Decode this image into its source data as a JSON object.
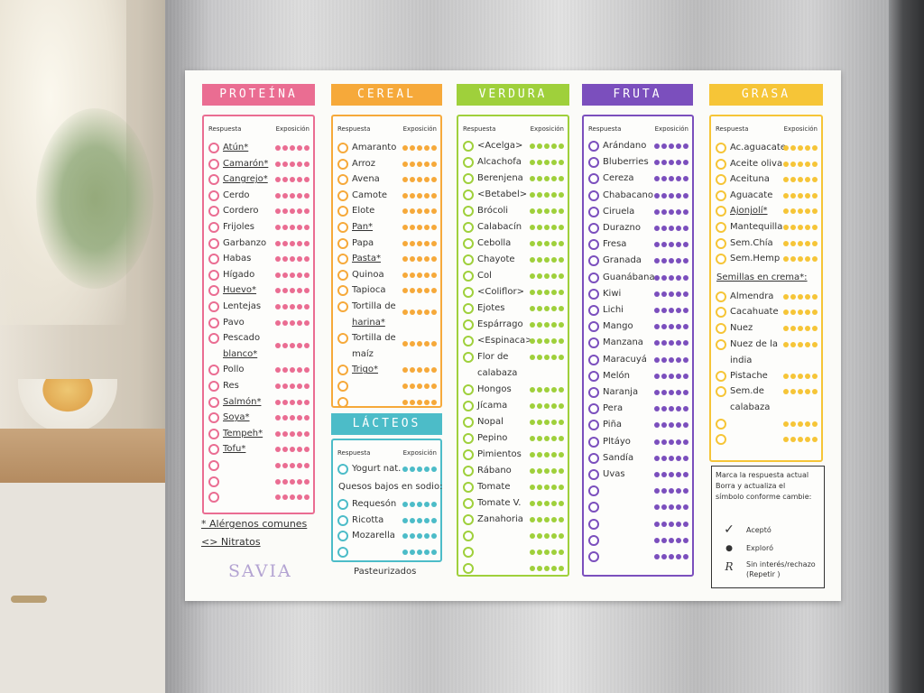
{
  "colors": {
    "proteina": "#ea6d92",
    "cereal": "#f6a93a",
    "verdura": "#9fd03b",
    "fruta": "#7b4fbd",
    "grasa": "#f6c537",
    "lacteos": "#4cbcc8"
  },
  "sheet": {
    "col_respuesta": "Respuesta",
    "col_exposicion": "Exposición"
  },
  "proteina": {
    "title": "PROTEÍNA",
    "items": [
      "Atún*",
      "Camarón*",
      "Cangrejo*",
      "Cerdo",
      "Cordero",
      "Frijoles",
      "Garbanzo",
      "Habas",
      "Hígado",
      "Huevo*",
      "Lentejas",
      "Pavo",
      "Pescado",
      "Pollo",
      "Res",
      "Salmón*",
      "Soya*",
      "Tempeh*",
      "Tofu*",
      "",
      "",
      ""
    ],
    "pescado_line2": "blanco*"
  },
  "cereal": {
    "title": "CEREAL",
    "items": [
      "Amaranto",
      "Arroz",
      "Avena",
      "Camote",
      "Elote",
      "Pan*",
      "Papa",
      "Pasta*",
      "Quinoa",
      "Tapioca",
      "Tortilla de",
      "Tortilla de",
      "Trigo*",
      "",
      ""
    ],
    "tortilla1_line2": "harina*",
    "tortilla2_line2": "maíz"
  },
  "lacteos": {
    "title": "LÁCTEOS",
    "items": [
      "Yogurt nat.",
      "Requesón",
      "Ricotta",
      "Mozarella",
      ""
    ],
    "quesos_label": "Quesos bajos en sodio:",
    "footer": "Pasteurizados"
  },
  "verdura": {
    "title": "VERDURA",
    "items": [
      "<Acelga>",
      "Alcachofa",
      "Berenjena",
      "<Betabel>",
      "Brócoli",
      "Calabacín",
      "Cebolla",
      "Chayote",
      "Col",
      "<Coliflor>",
      "Ejotes",
      "Espárrago",
      "<Espinaca>",
      "Flor de",
      "Hongos",
      "Jícama",
      "Nopal",
      "Pepino",
      "Pimientos",
      "Rábano",
      "Tomate",
      "Tomate V.",
      "Zanahoria",
      "",
      "",
      ""
    ],
    "flor_line2": "calabaza"
  },
  "fruta": {
    "title": "FRUTA",
    "items": [
      "Arándano",
      "Bluberries",
      "Cereza",
      "Chabacano",
      "Ciruela",
      "Durazno",
      "Fresa",
      "Granada",
      "Guanábana",
      "Kiwi",
      "Lichi",
      "Mango",
      "Manzana",
      "Maracuyá",
      "Melón",
      "Naranja",
      "Pera",
      "Piña",
      "Pltáyo",
      "Sandía",
      "Uvas",
      "",
      "",
      "",
      "",
      ""
    ]
  },
  "grasa": {
    "title": "GRASA",
    "items": [
      "Ac.aguacate",
      "Aceite oliva",
      "Aceituna",
      "Aguacate",
      "Ajonjolí*",
      "Mantequilla",
      "Sem.Chía",
      "Sem.Hemp"
    ],
    "semillas_label": "Semillas en crema*:",
    "cremas": [
      "Almendra",
      "Cacahuate",
      "Nuez",
      "Nuez de la",
      "Pistache",
      "Sem.de",
      "",
      ""
    ],
    "nuez_line2": "india",
    "sem_line2": "calabaza"
  },
  "footnotes": {
    "alergenos": "* Alérgenos comunes",
    "nitratos": "<> Nitratos"
  },
  "brand": "SAVIA",
  "legend": {
    "line1": "Marca la respuesta actual",
    "line2": "Borra y actualiza el",
    "line3": "símbolo conforme cambie:",
    "acepto_symbol": "✓",
    "acepto": "Aceptó",
    "exploro_symbol": "●",
    "exploro": "Exploró",
    "rechazo_symbol": "R",
    "rechazo_1": "Sin interés/rechazo",
    "rechazo_2": "(Repetir )"
  }
}
